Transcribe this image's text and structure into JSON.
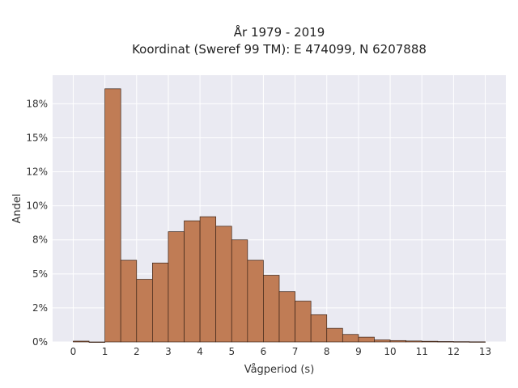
{
  "chart_data": {
    "type": "bar",
    "title": "År 1979 - 2019",
    "subtitle": "Koordinat (Sweref 99 TM): E 474099, N 6207888",
    "xlabel": "Vågperiod (s)",
    "ylabel": "Andel",
    "bin_width": 0.5,
    "bin_starts": [
      0,
      0.5,
      1,
      1.5,
      2,
      2.5,
      3,
      3.5,
      4,
      4.5,
      5,
      5.5,
      6,
      6.5,
      7,
      7.5,
      8,
      8.5,
      9,
      9.5,
      10,
      10.5,
      11,
      11.5,
      12,
      12.5
    ],
    "values": [
      0.06,
      0.0,
      18.6,
      6.0,
      4.6,
      5.8,
      8.1,
      8.9,
      9.2,
      8.5,
      7.5,
      6.0,
      4.9,
      3.7,
      3.0,
      2.0,
      1.0,
      0.55,
      0.35,
      0.15,
      0.1,
      0.07,
      0.05,
      0.03,
      0.02,
      0.01
    ],
    "xticks": [
      0,
      1,
      2,
      3,
      4,
      5,
      6,
      7,
      8,
      9,
      10,
      11,
      12,
      13
    ],
    "yticks": [
      0,
      2.5,
      5,
      7.5,
      10,
      12.5,
      15,
      17.5
    ],
    "ytick_labels": [
      "0%",
      "2%",
      "5%",
      "8%",
      "10%",
      "12%",
      "15%",
      "18%"
    ],
    "xlim": [
      -0.65,
      13.65
    ],
    "ylim": [
      0,
      19.6
    ],
    "grid": true,
    "colors": {
      "bar_fill": "#c07c55",
      "bar_edge": "#3b2418",
      "plot_background": "#eaeaf2",
      "grid": "#ffffff"
    }
  }
}
